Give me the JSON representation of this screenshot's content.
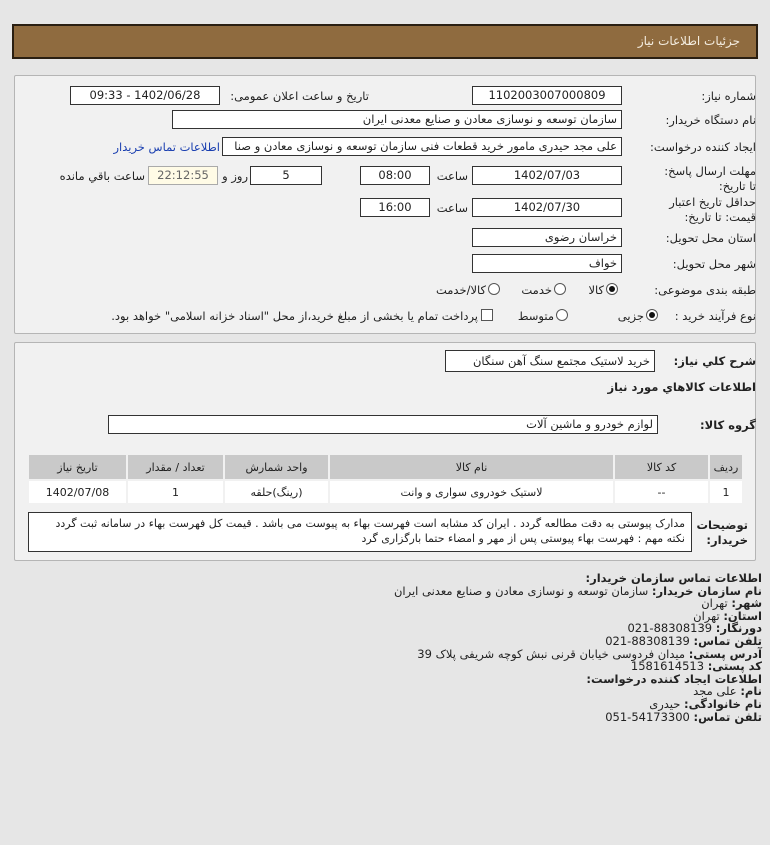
{
  "header": {
    "title": "جزئيات اطلاعات نياز"
  },
  "form": {
    "need_number_label": "شماره نیاز:",
    "need_number": "1102003007000809",
    "announce_label": "تاریخ و ساعت اعلان عمومی:",
    "announce_value": "1402/06/28 - 09:33",
    "buyer_label": "نام دستگاه خریدار:",
    "buyer_value": "سازمان توسعه و نوسازی معادن و صنایع معدنی ایران",
    "creator_label": "ایجاد کننده درخواست:",
    "creator_value": "علی مجد حیدری مامور خرید قطعات فنی سازمان توسعه و نوسازی معادن و صنا",
    "contact_link": "اطلاعات تماس خریدار",
    "deadline_label": "مهلت ارسال پاسخ: تا تاریخ:",
    "deadline_date": "1402/07/03",
    "time_label": "ساعت",
    "deadline_time": "08:00",
    "days": "5",
    "days_label": "روز و",
    "remaining": "22:12:55",
    "remaining_label": "ساعت باقي مانده",
    "validity_label": "حداقل تاریخ اعتبار قیمت: تا تاریخ:",
    "validity_date": "1402/07/30",
    "validity_time": "16:00",
    "province_label": "استان محل تحویل:",
    "province": "خراسان رضوی",
    "city_label": "شهر محل تحویل:",
    "city": "خواف",
    "category_label": "طبقه بندی موضوعی:",
    "category_options": [
      "کالا",
      "خدمت",
      "کالا/خدمت"
    ],
    "category_selected": "کالا",
    "process_label": "نوع فرآیند خرید :",
    "process_options": [
      "جزیی",
      "متوسط"
    ],
    "process_selected": "جزیی",
    "payment_note": "پرداخت تمام یا بخشی از مبلغ خرید،از محل \"اسناد خزانه اسلامی\" خواهد بود.",
    "payment_checked": false
  },
  "details": {
    "summary_label": "شرح کلي نياز:",
    "summary": "خرید لاستیک مجتمع سنگ آهن سنگان",
    "goods_heading": "اطلاعات کالاهاي مورد نياز",
    "group_label": "گروه کالا:",
    "group": "لوازم خودرو و ماشین آلات",
    "table": {
      "headers": [
        "ردیف",
        "کد کالا",
        "نام کالا",
        "واحد شمارش",
        "تعداد / مقدار",
        "تاریخ نیاز"
      ],
      "rows": [
        [
          "1",
          "--",
          "لاستیک خودروی سواری و وانت",
          "(رینگ)حلقه",
          "1",
          "1402/07/08"
        ]
      ]
    },
    "notes_label": "توضیحات خریدار:",
    "notes": "مدارک پیوستی به دقت مطالعه گردد . ایران کد مشابه است فهرست بهاء به پیوست می باشد . قیمت کل فهرست بهاء در سامانه ثبت گردد نکته مهم : فهرست بهاء پیوستی پس از مهر و امضاء حتما بارگزاری گرد"
  },
  "contact": {
    "heading": "اطلاعات تماس سازمان خریدار:",
    "org_label": "نام سازمان خریدار:",
    "org": "سازمان توسعه و نوسازی معادن و صنایع معدنی ایران",
    "city_label": "شهر:",
    "city": "تهران",
    "province_label": "استان:",
    "province": "تهران",
    "fax_label": "دورنگار:",
    "fax": "88308139-021",
    "phone_label": "تلفن تماس:",
    "phone": "88308139-021",
    "address_label": "آدرس پستی:",
    "address": "میدان فردوسی خیابان قرنی نبش کوچه شریفی پلاک 39",
    "postal_label": "کد پستی:",
    "postal": "1581614513",
    "creator_heading": "اطلاعات ایجاد کننده درخواست:",
    "name_label": "نام:",
    "name": "علی مجد",
    "family_label": "نام خانوادگی:",
    "family": "حیدری",
    "creator_phone_label": "تلفن تماس:",
    "creator_phone": "54173300-051"
  }
}
